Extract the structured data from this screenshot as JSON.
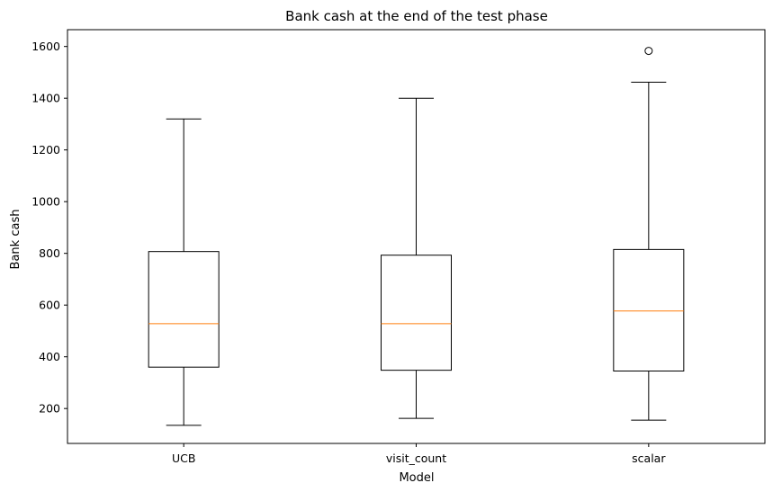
{
  "chart_data": {
    "type": "boxplot",
    "title": "Bank cash at the end of the test phase",
    "xlabel": "Model",
    "ylabel": "Bank cash",
    "categories": [
      "UCB",
      "visit_count",
      "scalar"
    ],
    "ylim": [
      65,
      1665
    ],
    "yticks": [
      200,
      400,
      600,
      800,
      1000,
      1200,
      1400,
      1600
    ],
    "grid": false,
    "boxes": [
      {
        "label": "UCB",
        "whisker_low": 135,
        "q1": 360,
        "median": 528,
        "q3": 807,
        "whisker_high": 1320,
        "outliers": []
      },
      {
        "label": "visit_count",
        "whisker_low": 162,
        "q1": 348,
        "median": 528,
        "q3": 793,
        "whisker_high": 1400,
        "outliers": []
      },
      {
        "label": "scalar",
        "whisker_low": 155,
        "q1": 345,
        "median": 577,
        "q3": 815,
        "whisker_high": 1462,
        "outliers": [
          1583
        ]
      }
    ],
    "colors": {
      "box": "#000000",
      "median": "#ff7f0e"
    }
  }
}
